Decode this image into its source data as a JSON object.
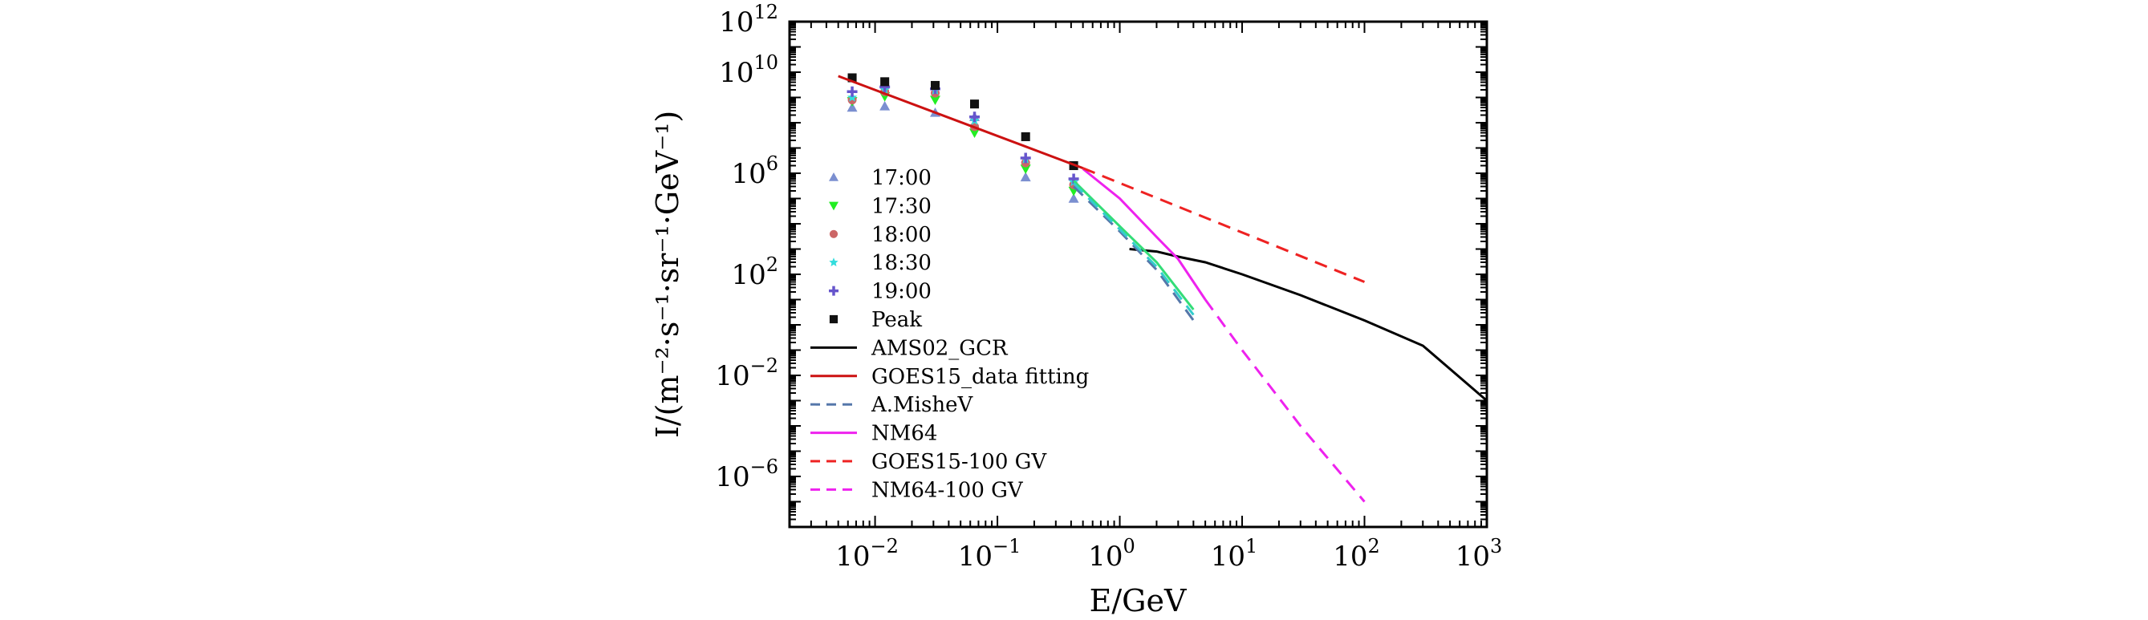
{
  "chart_data": {
    "type": "scatter",
    "xlabel": "E/GeV",
    "ylabel": "I/(m⁻²·s⁻¹·sr⁻¹·GeV⁻¹)",
    "xscale": "log",
    "yscale": "log",
    "xlim": [
      0.002,
      1000
    ],
    "ylim": [
      1e-08,
      1000000000000.0
    ],
    "xticks": [
      {
        "value": 0.01,
        "label": "10",
        "exp": "−2"
      },
      {
        "value": 0.1,
        "label": "10",
        "exp": "−1"
      },
      {
        "value": 1,
        "label": "10",
        "exp": "0"
      },
      {
        "value": 10,
        "label": "10",
        "exp": "1"
      },
      {
        "value": 100,
        "label": "10",
        "exp": "2"
      },
      {
        "value": 1000,
        "label": "10",
        "exp": "3"
      }
    ],
    "yticks": [
      {
        "value": 1e-06,
        "label": "10",
        "exp": "−6"
      },
      {
        "value": 0.01,
        "label": "10",
        "exp": "−2"
      },
      {
        "value": 100,
        "label": "10",
        "exp": "2"
      },
      {
        "value": 1000000.0,
        "label": "10",
        "exp": "6"
      },
      {
        "value": 10000000000.0,
        "label": "10",
        "exp": "10"
      },
      {
        "value": 1000000000000.0,
        "label": "10",
        "exp": "12"
      }
    ],
    "grid": false,
    "legend_position": "lower-left",
    "series": [
      {
        "name": "17:00",
        "kind": "marker",
        "marker": "triangle-up",
        "color": "#7b8fd0",
        "x": [
          0.0065,
          0.012,
          0.031,
          0.065,
          0.17,
          0.42
        ],
        "y": [
          400000000.0,
          450000000.0,
          250000000.0,
          170000000.0,
          700000.0,
          100000.0
        ]
      },
      {
        "name": "17:30",
        "kind": "marker",
        "marker": "triangle-down",
        "color": "#22ee22",
        "x": [
          0.0065,
          0.012,
          0.031,
          0.065,
          0.17,
          0.42
        ],
        "y": [
          700000000.0,
          1100000000.0,
          800000000.0,
          40000000.0,
          1500000.0,
          200000.0
        ]
      },
      {
        "name": "18:00",
        "kind": "marker",
        "marker": "circle",
        "color": "#cc6666",
        "x": [
          0.0065,
          0.012,
          0.031,
          0.065,
          0.17,
          0.42
        ],
        "y": [
          800000000.0,
          1700000000.0,
          1500000000.0,
          70000000.0,
          2600000.0,
          350000.0
        ]
      },
      {
        "name": "18:30",
        "kind": "marker",
        "marker": "star",
        "color": "#33dddd",
        "x": [
          0.0065,
          0.012,
          0.031,
          0.065,
          0.17,
          0.42
        ],
        "y": [
          1000000000.0,
          2000000000.0,
          1900000000.0,
          120000000.0,
          3600000.0,
          450000.0
        ]
      },
      {
        "name": "19:00",
        "kind": "marker",
        "marker": "plus",
        "color": "#6655cc",
        "x": [
          0.0065,
          0.012,
          0.031,
          0.065,
          0.17,
          0.42
        ],
        "y": [
          1700000000.0,
          2600000000.0,
          2200000000.0,
          170000000.0,
          4000000.0,
          600000.0
        ]
      },
      {
        "name": "Peak",
        "kind": "marker",
        "marker": "square",
        "color": "#111111",
        "x": [
          0.0065,
          0.012,
          0.031,
          0.065,
          0.17,
          0.42
        ],
        "y": [
          6000000000.0,
          4200000000.0,
          3000000000.0,
          550000000.0,
          28000000.0,
          2000000.0
        ]
      },
      {
        "name": "AMS02_GCR",
        "kind": "line",
        "dash": "solid",
        "color": "#000000",
        "x": [
          1.2,
          2.0,
          3.0,
          5.0,
          10,
          30,
          100,
          300,
          1000
        ],
        "y": [
          1000,
          800,
          500,
          300,
          100,
          15,
          1.5,
          0.15,
          0.001
        ]
      },
      {
        "name": "GOES15_data fitting",
        "kind": "line",
        "dash": "solid",
        "color": "#cc1111",
        "x": [
          0.005,
          0.5
        ],
        "y": [
          7000000000.0,
          1600000.0
        ]
      },
      {
        "name": "A.MisheV",
        "kind": "line",
        "dash": "dashed",
        "color": "#5577aa",
        "x": [
          0.42,
          1.0,
          2.0,
          4.0
        ],
        "y": [
          300000.0,
          5000.0,
          150,
          1.5
        ]
      },
      {
        "name": "NM64",
        "kind": "line",
        "dash": "solid",
        "color": "#ee22ee",
        "x": [
          0.5,
          1.0,
          2.0,
          3.0,
          5.0
        ],
        "y": [
          1500000.0,
          100000.0,
          3000.0,
          400,
          10
        ]
      },
      {
        "name": "GOES15-100 GV",
        "kind": "line",
        "dash": "dashed",
        "color": "#ee2222",
        "x": [
          0.5,
          100
        ],
        "y": [
          1600000.0,
          50
        ]
      },
      {
        "name": "NM64-100 GV",
        "kind": "line",
        "dash": "dashed",
        "color": "#ee22ee",
        "x": [
          5.0,
          10,
          30,
          100
        ],
        "y": [
          10,
          0.1,
          0.0001,
          1e-07
        ]
      },
      {
        "name": "",
        "kind": "line",
        "dash": "solid",
        "color": "#33dd77",
        "x": [
          0.42,
          1.0,
          2.0,
          4.0
        ],
        "y": [
          500000.0,
          8000.0,
          300,
          4
        ]
      },
      {
        "name": "",
        "kind": "line",
        "dash": "dashed",
        "color": "#33cccc",
        "x": [
          0.42,
          1.0,
          2.0,
          4.0
        ],
        "y": [
          400000.0,
          6000.0,
          200,
          2.5
        ]
      }
    ]
  }
}
